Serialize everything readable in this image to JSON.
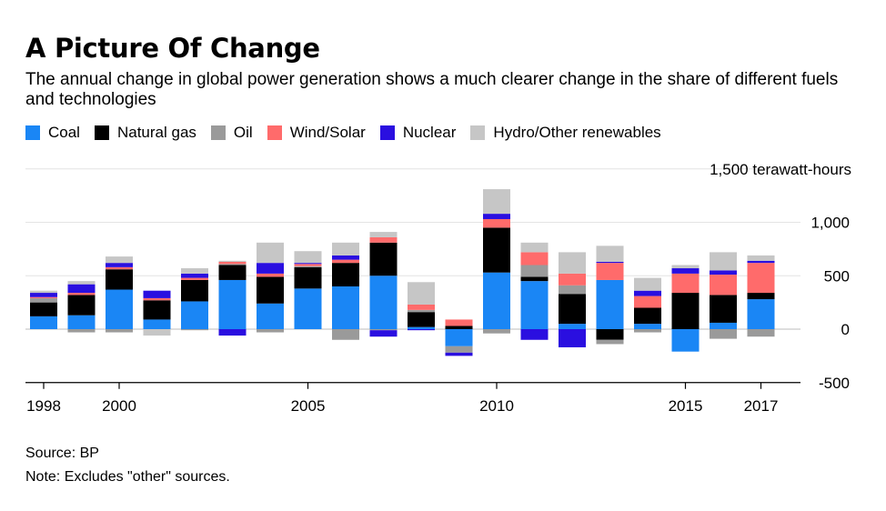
{
  "title": "A Picture Of Change",
  "subtitle": "The annual change in global power generation shows a much clearer change in the share of different fuels and technologies",
  "source": "Source: BP",
  "note": "Note: Excludes \"other\" sources.",
  "legend": [
    {
      "name": "Coal",
      "color": "#1a86f5"
    },
    {
      "name": "Natural gas",
      "color": "#000000"
    },
    {
      "name": "Oil",
      "color": "#9a9a9a"
    },
    {
      "name": "Wind/Solar",
      "color": "#ff6b6b"
    },
    {
      "name": "Nuclear",
      "color": "#2a0fe0"
    },
    {
      "name": "Hydro/Other renewables",
      "color": "#c6c6c6"
    }
  ],
  "chart_data": {
    "type": "bar",
    "stacked": true,
    "categories": [
      "1998",
      "1999",
      "2000",
      "2001",
      "2002",
      "2003",
      "2004",
      "2005",
      "2006",
      "2007",
      "2008",
      "2009",
      "2010",
      "2011",
      "2012",
      "2013",
      "2014",
      "2015",
      "2016",
      "2017"
    ],
    "x_tick_labels": [
      "1998",
      "2000",
      "2005",
      "2010",
      "2015",
      "2017"
    ],
    "y_ticks": [
      -500,
      0,
      500,
      1000
    ],
    "y_tick_labels": [
      "-500",
      "0",
      "500",
      "1,000"
    ],
    "y_unit_label": "1,500 terawatt-hours",
    "ylim": [
      -500,
      1500
    ],
    "grid": true,
    "legend_position": "top",
    "series": [
      {
        "name": "Coal",
        "values": [
          120,
          130,
          370,
          90,
          260,
          460,
          240,
          380,
          400,
          500,
          20,
          -160,
          530,
          450,
          50,
          460,
          50,
          -210,
          60,
          280
        ]
      },
      {
        "name": "Natural gas",
        "values": [
          130,
          190,
          190,
          180,
          200,
          140,
          250,
          200,
          220,
          310,
          140,
          30,
          420,
          40,
          280,
          -100,
          150,
          340,
          260,
          60
        ]
      },
      {
        "name": "Oil",
        "values": [
          40,
          -30,
          -30,
          0,
          -10,
          10,
          -30,
          10,
          -100,
          -10,
          20,
          -60,
          -40,
          110,
          80,
          -40,
          -30,
          0,
          -90,
          -70
        ]
      },
      {
        "name": "Wind/Solar",
        "values": [
          10,
          20,
          20,
          20,
          20,
          20,
          30,
          20,
          30,
          50,
          50,
          60,
          80,
          120,
          110,
          160,
          110,
          180,
          190,
          280
        ]
      },
      {
        "name": "Nuclear",
        "values": [
          40,
          80,
          40,
          70,
          40,
          -60,
          100,
          10,
          40,
          -60,
          -10,
          -30,
          50,
          -100,
          -170,
          10,
          50,
          50,
          40,
          20
        ]
      },
      {
        "name": "Hydro/Other renewables",
        "values": [
          20,
          30,
          60,
          -60,
          50,
          10,
          190,
          110,
          120,
          50,
          210,
          0,
          230,
          90,
          200,
          150,
          120,
          30,
          170,
          50
        ]
      }
    ]
  }
}
